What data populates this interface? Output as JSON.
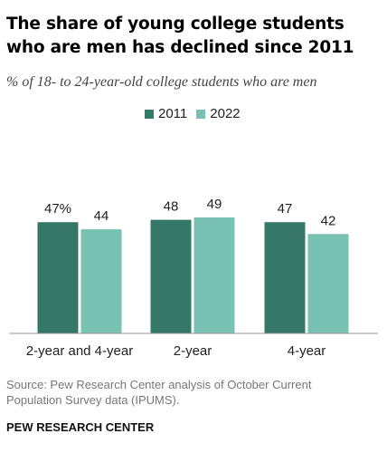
{
  "header": {
    "title": "The share of young college students who are men has declined since 2011",
    "subtitle": "% of 18- to 24-year-old college students who are men"
  },
  "chart_data": {
    "type": "bar",
    "categories": [
      "2-year and 4-year",
      "2-year",
      "4-year"
    ],
    "series": [
      {
        "name": "2011",
        "values": [
          47,
          48,
          47
        ],
        "labels": [
          "47%",
          "48",
          "47"
        ],
        "color": "#357867"
      },
      {
        "name": "2022",
        "values": [
          44,
          49,
          42
        ],
        "labels": [
          "44",
          "49",
          "42"
        ],
        "color": "#79c1b0"
      }
    ],
    "ylim": [
      0,
      50
    ],
    "grid": false,
    "legend": "top-center"
  },
  "footer": {
    "source": "Source: Pew Research Center analysis of October Current Population Survey data (IPUMS).",
    "brand": "PEW RESEARCH CENTER"
  }
}
